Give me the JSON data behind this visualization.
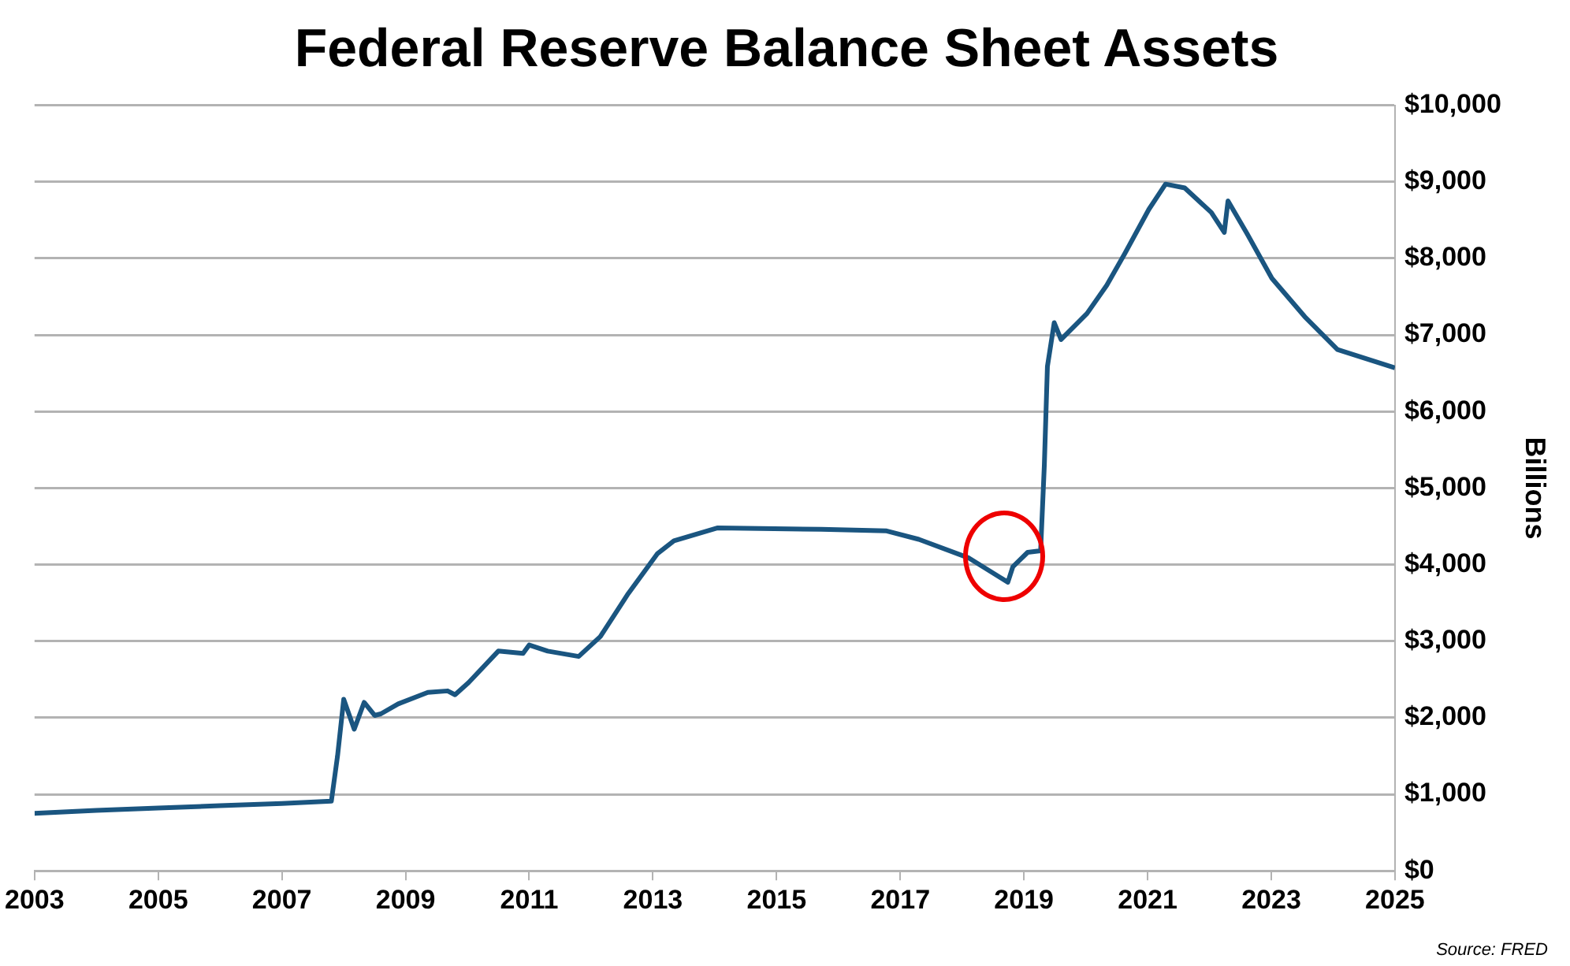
{
  "chart_data": {
    "type": "line",
    "title": "Federal Reserve Balance Sheet Assets",
    "ylabel": "Billions",
    "annotations": [
      "Source: FRED"
    ],
    "x": [
      2003,
      2004,
      2005,
      2006,
      2007,
      2007.8,
      2007.9,
      2008.0,
      2008.17,
      2008.33,
      2008.5,
      2008.6,
      2008.88,
      2009.36,
      2009.68,
      2009.8,
      2010.02,
      2010.5,
      2010.9,
      2011.0,
      2011.3,
      2011.8,
      2012.15,
      2012.6,
      2013.07,
      2013.34,
      2014.05,
      2015.72,
      2016.78,
      2017.3,
      2018.1,
      2018.74,
      2018.82,
      2019.06,
      2019.27,
      2019.33,
      2019.38,
      2019.49,
      2019.6,
      2020.02,
      2020.34,
      2020.63,
      2021.02,
      2021.29,
      2021.6,
      2022.03,
      2022.24,
      2022.3,
      2022.61,
      2023.01,
      2023.54,
      2024.07,
      2025.0
    ],
    "series": [
      {
        "color": "#1a5580",
        "values": [
          750,
          790,
          820,
          850,
          880,
          910,
          1500,
          2240,
          1850,
          2200,
          2030,
          2050,
          2180,
          2330,
          2350,
          2300,
          2460,
          2870,
          2840,
          2950,
          2870,
          2800,
          3060,
          3620,
          4140,
          4310,
          4480,
          4460,
          4440,
          4330,
          4090,
          3770,
          3970,
          4160,
          4180,
          5300,
          6590,
          7160,
          6940,
          7280,
          7650,
          8060,
          8640,
          8970,
          8920,
          8600,
          8340,
          8750,
          8320,
          7740,
          7240,
          6810,
          6570
        ]
      }
    ],
    "xlim": [
      2003,
      2025
    ],
    "xticks": [
      2003,
      2005,
      2007,
      2009,
      2011,
      2013,
      2015,
      2017,
      2019,
      2021,
      2023,
      2025
    ],
    "ylim": [
      0,
      10000
    ],
    "yticks": [
      {
        "value": 0,
        "label": "$0"
      },
      {
        "value": 1000,
        "label": "$1,000"
      },
      {
        "value": 2000,
        "label": "$2,000"
      },
      {
        "value": 3000,
        "label": "$3,000"
      },
      {
        "value": 4000,
        "label": "$4,000"
      },
      {
        "value": 5000,
        "label": "$5,000"
      },
      {
        "value": 6000,
        "label": "$6,000"
      },
      {
        "value": 7000,
        "label": "$7,000"
      },
      {
        "value": 8000,
        "label": "$8,000"
      },
      {
        "value": 9000,
        "label": "$9,000"
      },
      {
        "value": 10000,
        "label": "$10,000"
      }
    ],
    "grid": "y",
    "legend": false,
    "marker": "none",
    "line_style": "solid"
  }
}
